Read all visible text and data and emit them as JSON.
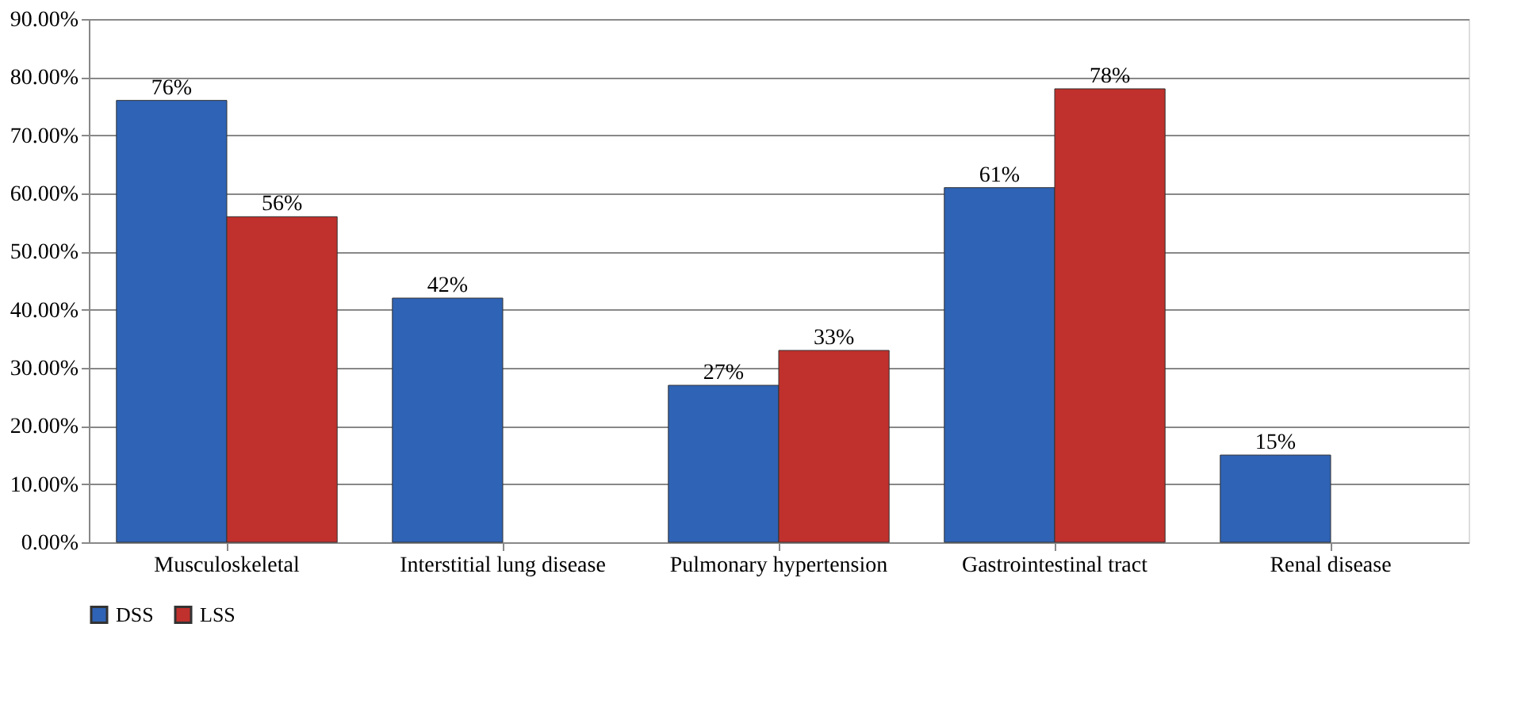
{
  "chart_data": {
    "type": "bar",
    "categories": [
      "Musculoskeletal",
      "Interstitial lung disease",
      "Pulmonary hypertension",
      "Gastrointestinal tract",
      "Renal disease"
    ],
    "series": [
      {
        "name": "DSS",
        "color": "#2f63b5",
        "values": [
          76,
          42,
          27,
          61,
          15
        ],
        "value_labels": [
          "76%",
          "42%",
          "27%",
          "61%",
          "15%"
        ]
      },
      {
        "name": "LSS",
        "color": "#c0302c",
        "values": [
          56,
          null,
          33,
          78,
          null
        ],
        "value_labels": [
          "56%",
          null,
          "33%",
          "78%",
          null
        ]
      }
    ],
    "ylim": [
      0,
      90
    ],
    "yticks": [
      {
        "value": 0,
        "label": "0.00%"
      },
      {
        "value": 10,
        "label": "10.00%"
      },
      {
        "value": 20,
        "label": "20.00%"
      },
      {
        "value": 30,
        "label": "30.00%"
      },
      {
        "value": 40,
        "label": "40.00%"
      },
      {
        "value": 50,
        "label": "50.00%"
      },
      {
        "value": 60,
        "label": "60.00%"
      },
      {
        "value": 70,
        "label": "70.00%"
      },
      {
        "value": 80,
        "label": "80.00%"
      },
      {
        "value": 90,
        "label": "90.00%"
      }
    ],
    "grid": "y",
    "legend": "bottom"
  }
}
